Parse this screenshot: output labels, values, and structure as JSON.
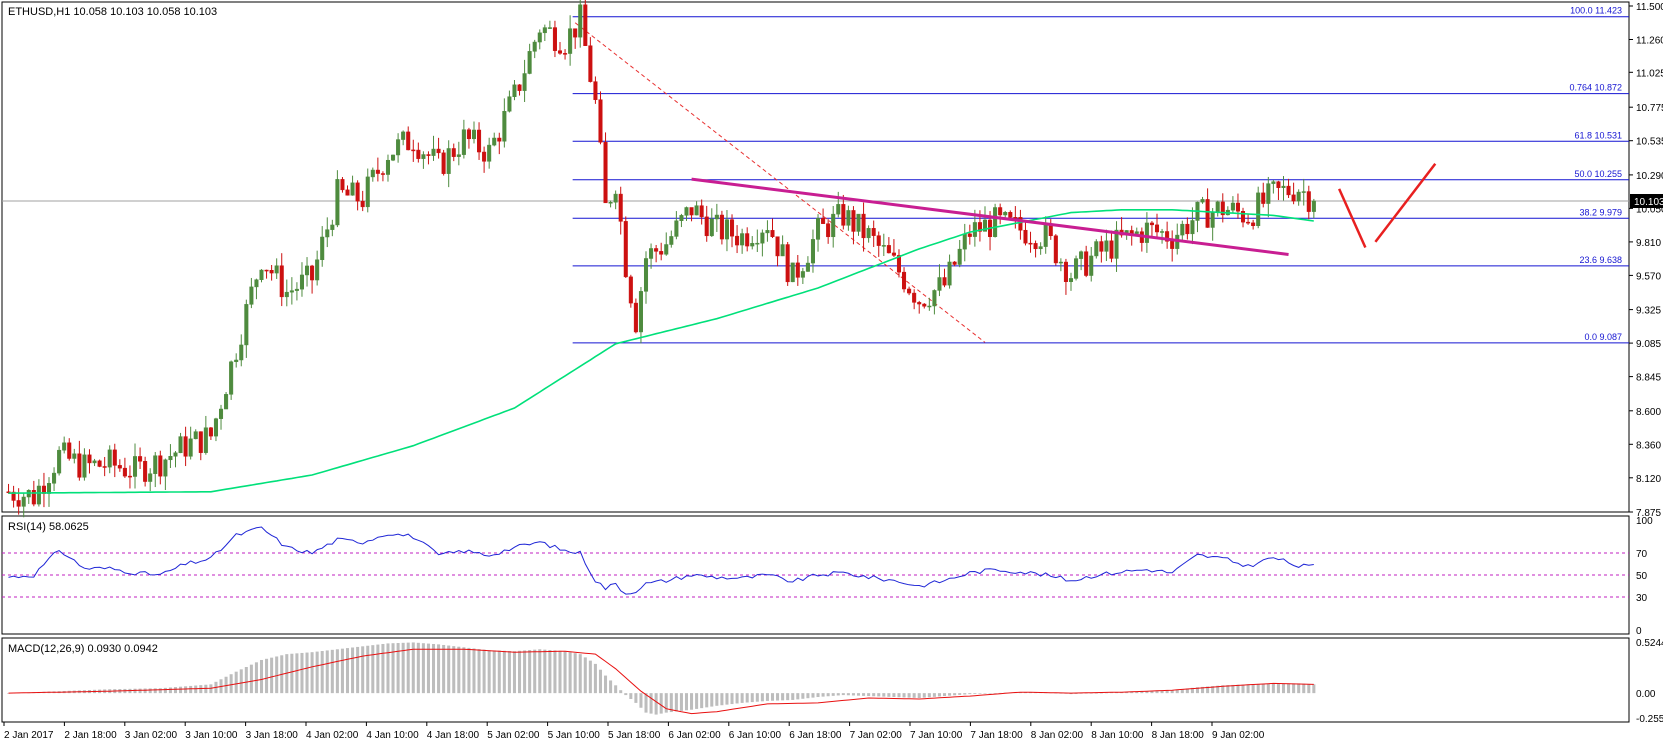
{
  "chart_data": {
    "type": "candlestick",
    "symbol_header": "ETHUSD,H1  10.058 10.103 10.058 10.103",
    "current_price_label": "10.103",
    "grid": false,
    "price_axis_ticks": [
      "11.500",
      "11.260",
      "11.025",
      "10.775",
      "10.535",
      "10.290",
      "10.050",
      "9.810",
      "9.570",
      "9.325",
      "9.085",
      "8.845",
      "8.600",
      "8.360",
      "8.120",
      "7.875"
    ],
    "price_range": [
      7.875,
      11.5
    ],
    "time_axis_labels": [
      "2 Jan 2017",
      "2 Jan 18:00",
      "3 Jan 02:00",
      "3 Jan 10:00",
      "3 Jan 18:00",
      "4 Jan 02:00",
      "4 Jan 10:00",
      "4 Jan 18:00",
      "5 Jan 02:00",
      "5 Jan 10:00",
      "5 Jan 18:00",
      "6 Jan 02:00",
      "6 Jan 10:00",
      "6 Jan 18:00",
      "7 Jan 02:00",
      "7 Jan 10:00",
      "7 Jan 18:00",
      "8 Jan 02:00",
      "8 Jan 10:00",
      "8 Jan 18:00",
      "9 Jan 02:00"
    ],
    "fib_levels": [
      {
        "level": "100.0",
        "price": 11.423,
        "label": "100.0  11.423"
      },
      {
        "level": "76.4",
        "price": 10.872,
        "label": "0.764  10.872"
      },
      {
        "level": "61.8",
        "price": 10.531,
        "label": "61.8  10.531"
      },
      {
        "level": "50.0",
        "price": 10.255,
        "label": "50.0  10.255"
      },
      {
        "level": "38.2",
        "price": 9.979,
        "label": "38.2  9.979"
      },
      {
        "level": "23.6",
        "price": 9.638,
        "label": "23.6  9.638"
      },
      {
        "level": "0.0",
        "price": 9.087,
        "label": "0.0  9.087"
      }
    ],
    "close_trajectory": [
      [
        0,
        8.02
      ],
      [
        5,
        7.99
      ],
      [
        10,
        8.28
      ],
      [
        15,
        8.2
      ],
      [
        20,
        8.22
      ],
      [
        25,
        8.17
      ],
      [
        30,
        8.24
      ],
      [
        35,
        8.35
      ],
      [
        40,
        8.42
      ],
      [
        45,
        9.05
      ],
      [
        50,
        9.7
      ],
      [
        55,
        9.45
      ],
      [
        60,
        9.55
      ],
      [
        65,
        10.15
      ],
      [
        70,
        10.12
      ],
      [
        75,
        10.45
      ],
      [
        80,
        10.55
      ],
      [
        85,
        10.35
      ],
      [
        90,
        10.55
      ],
      [
        95,
        10.45
      ],
      [
        100,
        10.85
      ],
      [
        105,
        11.35
      ],
      [
        110,
        11.25
      ],
      [
        113,
        11.4
      ],
      [
        116,
        10.8
      ],
      [
        118,
        10.05
      ],
      [
        120,
        10.25
      ],
      [
        122,
        9.65
      ],
      [
        124,
        9.25
      ],
      [
        126,
        9.7
      ],
      [
        130,
        9.8
      ],
      [
        135,
        10.05
      ],
      [
        140,
        9.9
      ],
      [
        145,
        9.85
      ],
      [
        150,
        9.95
      ],
      [
        155,
        9.55
      ],
      [
        160,
        9.88
      ],
      [
        165,
        10.0
      ],
      [
        170,
        9.85
      ],
      [
        175,
        9.65
      ],
      [
        180,
        9.4
      ],
      [
        185,
        9.5
      ],
      [
        190,
        9.88
      ],
      [
        195,
        9.95
      ],
      [
        200,
        9.9
      ],
      [
        205,
        9.85
      ],
      [
        210,
        9.58
      ],
      [
        215,
        9.72
      ],
      [
        220,
        9.82
      ],
      [
        225,
        9.9
      ],
      [
        230,
        9.85
      ],
      [
        235,
        10.0
      ],
      [
        240,
        10.05
      ],
      [
        245,
        10.0
      ],
      [
        250,
        10.15
      ],
      [
        255,
        10.2
      ],
      [
        258,
        10.103
      ]
    ],
    "moving_average": {
      "color": "#00e07a",
      "points": [
        [
          0,
          8.01
        ],
        [
          40,
          8.02
        ],
        [
          60,
          8.14
        ],
        [
          80,
          8.35
        ],
        [
          100,
          8.62
        ],
        [
          110,
          8.85
        ],
        [
          120,
          9.08
        ],
        [
          140,
          9.26
        ],
        [
          160,
          9.48
        ],
        [
          170,
          9.62
        ],
        [
          180,
          9.76
        ],
        [
          190,
          9.88
        ],
        [
          200,
          9.95
        ],
        [
          210,
          10.02
        ],
        [
          220,
          10.04
        ],
        [
          230,
          10.04
        ],
        [
          240,
          10.02
        ],
        [
          250,
          10.0
        ],
        [
          258,
          9.96
        ]
      ]
    },
    "trendline_magenta": {
      "color": "#c81e92",
      "from": [
        135,
        10.26
      ],
      "to": [
        253,
        9.72
      ]
    },
    "dashed_red_line": {
      "color": "#e83030",
      "from": [
        112,
        11.38
      ],
      "to": [
        193,
        9.09
      ]
    },
    "arrow_color": "#e82020",
    "up_color": "#4e8b3e",
    "down_color": "#cc1010",
    "rsi": {
      "label": "RSI(14) 58.0625",
      "axis_ticks": [
        "100",
        "70",
        "50",
        "30",
        "0"
      ],
      "levels": [
        70,
        50,
        30
      ],
      "color": "#1f26d6",
      "values": [
        [
          0,
          48
        ],
        [
          5,
          50
        ],
        [
          10,
          73
        ],
        [
          15,
          56
        ],
        [
          20,
          56
        ],
        [
          25,
          52
        ],
        [
          30,
          50
        ],
        [
          35,
          60
        ],
        [
          40,
          65
        ],
        [
          45,
          86
        ],
        [
          50,
          93
        ],
        [
          55,
          75
        ],
        [
          60,
          70
        ],
        [
          65,
          82
        ],
        [
          70,
          80
        ],
        [
          75,
          88
        ],
        [
          80,
          85
        ],
        [
          85,
          68
        ],
        [
          90,
          72
        ],
        [
          95,
          68
        ],
        [
          100,
          75
        ],
        [
          105,
          80
        ],
        [
          110,
          72
        ],
        [
          113,
          70
        ],
        [
          116,
          45
        ],
        [
          118,
          38
        ],
        [
          120,
          42
        ],
        [
          122,
          33
        ],
        [
          124,
          36
        ],
        [
          126,
          42
        ],
        [
          130,
          45
        ],
        [
          135,
          50
        ],
        [
          140,
          48
        ],
        [
          145,
          47
        ],
        [
          150,
          50
        ],
        [
          155,
          44
        ],
        [
          160,
          50
        ],
        [
          165,
          52
        ],
        [
          170,
          48
        ],
        [
          175,
          45
        ],
        [
          180,
          40
        ],
        [
          185,
          45
        ],
        [
          190,
          52
        ],
        [
          195,
          55
        ],
        [
          200,
          53
        ],
        [
          205,
          50
        ],
        [
          210,
          45
        ],
        [
          215,
          50
        ],
        [
          220,
          53
        ],
        [
          225,
          55
        ],
        [
          230,
          52
        ],
        [
          235,
          68
        ],
        [
          240,
          65
        ],
        [
          245,
          58
        ],
        [
          250,
          66
        ],
        [
          255,
          58
        ],
        [
          258,
          58
        ]
      ]
    },
    "macd": {
      "label": "MACD(12,26,9) 0.0930 0.0942",
      "axis_ticks": [
        "0.5244",
        "0.00",
        "-0.2551"
      ],
      "range": [
        -0.2551,
        0.5244
      ],
      "signal_color": "#e81010",
      "hist_color": "#bdbdbd",
      "hist": [
        [
          0,
          0.0
        ],
        [
          10,
          0.02
        ],
        [
          20,
          0.04
        ],
        [
          30,
          0.05
        ],
        [
          40,
          0.09
        ],
        [
          45,
          0.22
        ],
        [
          50,
          0.34
        ],
        [
          55,
          0.4
        ],
        [
          60,
          0.42
        ],
        [
          65,
          0.45
        ],
        [
          70,
          0.48
        ],
        [
          75,
          0.51
        ],
        [
          80,
          0.52
        ],
        [
          85,
          0.5
        ],
        [
          90,
          0.47
        ],
        [
          95,
          0.44
        ],
        [
          100,
          0.43
        ],
        [
          105,
          0.45
        ],
        [
          110,
          0.43
        ],
        [
          113,
          0.4
        ],
        [
          116,
          0.3
        ],
        [
          118,
          0.18
        ],
        [
          120,
          0.08
        ],
        [
          122,
          -0.02
        ],
        [
          124,
          -0.1
        ],
        [
          126,
          -0.2
        ],
        [
          128,
          -0.22
        ],
        [
          130,
          -0.2
        ],
        [
          135,
          -0.17
        ],
        [
          140,
          -0.13
        ],
        [
          145,
          -0.1
        ],
        [
          150,
          -0.08
        ],
        [
          155,
          -0.07
        ],
        [
          160,
          -0.04
        ],
        [
          165,
          -0.02
        ],
        [
          170,
          -0.03
        ],
        [
          175,
          -0.04
        ],
        [
          180,
          -0.05
        ],
        [
          185,
          -0.03
        ],
        [
          190,
          -0.01
        ],
        [
          195,
          0.0
        ],
        [
          200,
          0.01
        ],
        [
          205,
          0.01
        ],
        [
          210,
          -0.01
        ],
        [
          215,
          0.0
        ],
        [
          220,
          0.01
        ],
        [
          225,
          0.02
        ],
        [
          230,
          0.03
        ],
        [
          235,
          0.06
        ],
        [
          240,
          0.08
        ],
        [
          245,
          0.09
        ],
        [
          250,
          0.1
        ],
        [
          255,
          0.1
        ],
        [
          258,
          0.09
        ]
      ],
      "signal": [
        [
          0,
          0.0
        ],
        [
          20,
          0.02
        ],
        [
          40,
          0.05
        ],
        [
          50,
          0.14
        ],
        [
          60,
          0.27
        ],
        [
          70,
          0.38
        ],
        [
          80,
          0.45
        ],
        [
          90,
          0.45
        ],
        [
          100,
          0.42
        ],
        [
          110,
          0.43
        ],
        [
          116,
          0.4
        ],
        [
          120,
          0.25
        ],
        [
          125,
          0.02
        ],
        [
          130,
          -0.16
        ],
        [
          135,
          -0.21
        ],
        [
          140,
          -0.19
        ],
        [
          150,
          -0.11
        ],
        [
          160,
          -0.1
        ],
        [
          170,
          -0.05
        ],
        [
          180,
          -0.06
        ],
        [
          190,
          -0.03
        ],
        [
          200,
          0.01
        ],
        [
          210,
          0.0
        ],
        [
          220,
          0.01
        ],
        [
          230,
          0.03
        ],
        [
          240,
          0.07
        ],
        [
          250,
          0.1
        ],
        [
          258,
          0.09
        ]
      ]
    }
  }
}
